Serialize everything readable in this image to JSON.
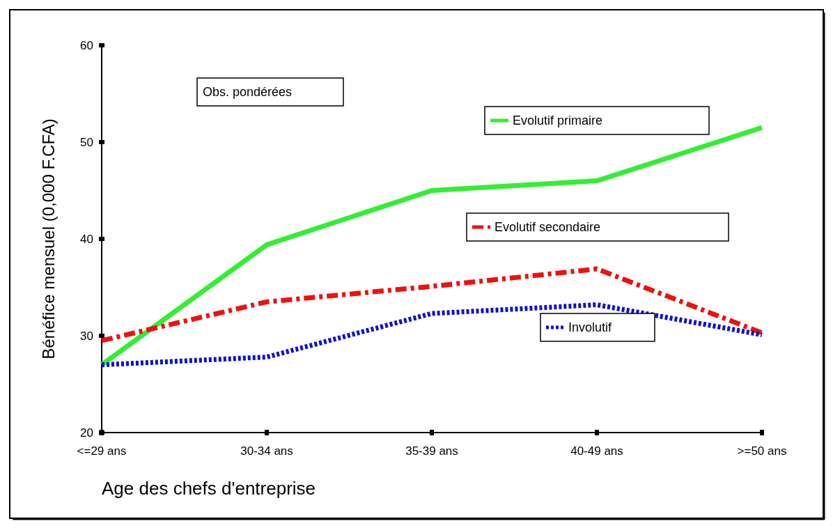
{
  "chart_data": {
    "type": "line",
    "xlabel": "Age des chefs d'entreprise",
    "ylabel": "Bénéfice mensuel (0,000 F.CFA)",
    "categories": [
      "<=29 ans",
      "30-34 ans",
      "35-39 ans",
      "40-49 ans",
      ">=50 ans"
    ],
    "ylim": [
      20,
      60
    ],
    "yticks": [
      20,
      30,
      40,
      50,
      60
    ],
    "grid": false,
    "legend": "right",
    "marker": "none",
    "annotations": [
      "Obs. pondérées"
    ],
    "series": [
      {
        "name": "Evolutif primaire",
        "color": "#33ee33",
        "line_style": "solid",
        "values": [
          27.0,
          39.4,
          45.0,
          46.0,
          51.5
        ]
      },
      {
        "name": "Evolutif secondaire",
        "color": "#ee1111",
        "line_style": "dashed",
        "values": [
          29.5,
          33.5,
          35.1,
          36.9,
          30.3
        ]
      },
      {
        "name": "Involutif",
        "color": "#1111cc",
        "line_style": "dotted",
        "values": [
          27.0,
          27.8,
          32.3,
          33.2,
          30.1
        ]
      }
    ]
  }
}
